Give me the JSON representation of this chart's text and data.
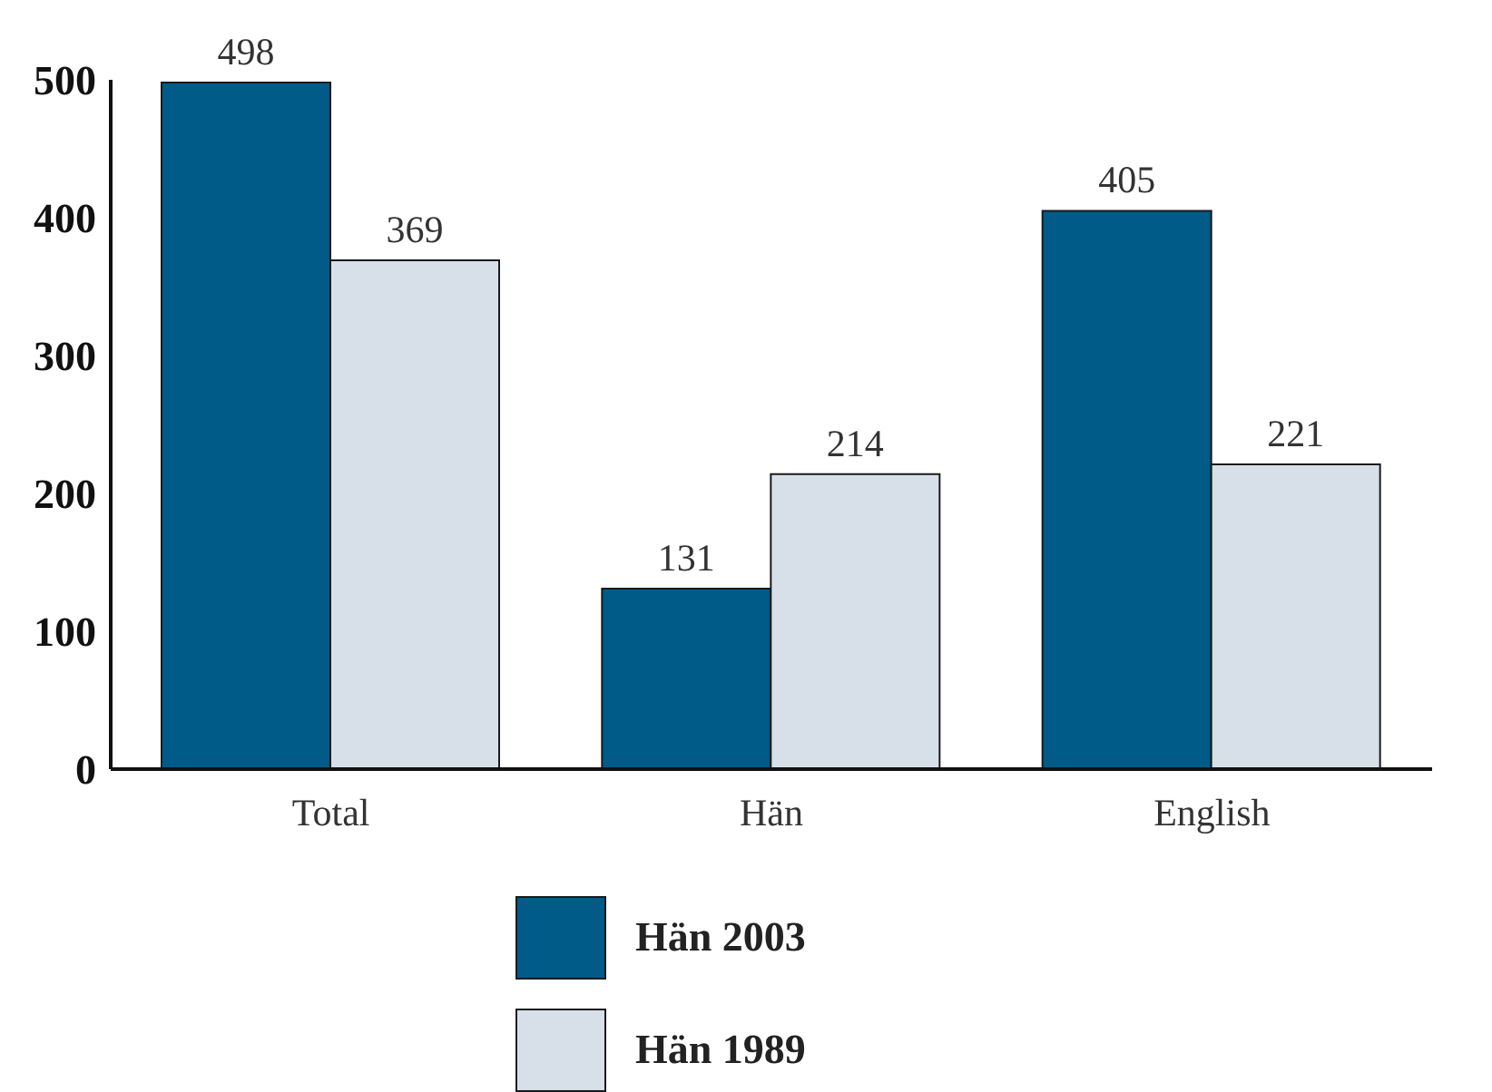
{
  "chart_data": {
    "type": "bar",
    "categories": [
      "Total",
      "Hän",
      "English"
    ],
    "series": [
      {
        "name": "Hän 2003",
        "color": "#005b88",
        "values": [
          498,
          131,
          405
        ]
      },
      {
        "name": "Hän 1989",
        "color": "#d7e0e9",
        "values": [
          369,
          214,
          221
        ]
      }
    ],
    "ylim": [
      0,
      500
    ],
    "yticks": [
      0,
      100,
      200,
      300,
      400,
      500
    ],
    "data_labels": true,
    "legend": "bottom"
  }
}
